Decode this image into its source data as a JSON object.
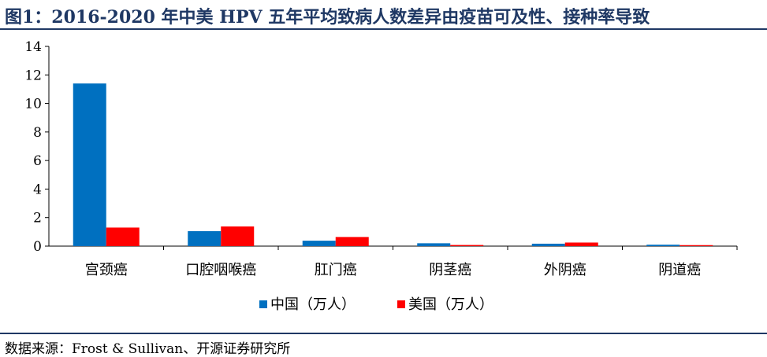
{
  "title": "图1：2016-2020 年中美 HPV 五年平均致病人数差异由疫苗可及性、接种率导致",
  "source": "数据来源：Frost & Sullivan、开源证券研究所",
  "chart_data": {
    "type": "bar",
    "categories": [
      "宫颈癌",
      "口腔咽喉癌",
      "肛门癌",
      "阴茎癌",
      "外阴癌",
      "阴道癌"
    ],
    "series": [
      {
        "name": "中国（万人）",
        "color": "#0070C0",
        "values": [
          11.4,
          1.05,
          0.38,
          0.2,
          0.17,
          0.1
        ]
      },
      {
        "name": "美国（万人）",
        "color": "#FF0000",
        "values": [
          1.3,
          1.38,
          0.64,
          0.08,
          0.25,
          0.07
        ]
      }
    ],
    "yticks": [
      0,
      2,
      4,
      6,
      8,
      10,
      12,
      14
    ],
    "ylim": [
      0,
      14
    ],
    "grid": false,
    "legend": "bottom"
  }
}
